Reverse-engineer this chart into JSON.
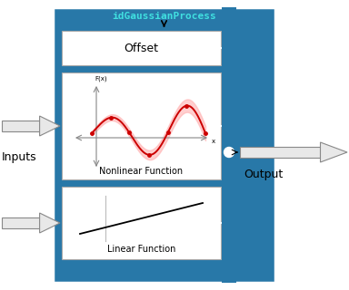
{
  "fig_w": 3.84,
  "fig_h": 3.2,
  "dpi": 100,
  "bg_color": "#2878a8",
  "box_bg": "#ffffff",
  "title_text": "idGaussianProcess",
  "title_color": "#40e0e0",
  "title_font": "monospace",
  "offset_label": "Offset",
  "nonlinear_label": "Nonlinear Function",
  "linear_label": "Linear Function",
  "inputs_label": "Inputs",
  "output_label": "Output",
  "fx_label": "F(x)",
  "x_label": "x",
  "red_line_color": "#cc0000",
  "red_fill_color": "#ffb0b0",
  "axis_color": "#888888",
  "white": "#ffffff",
  "black": "#000000",
  "arrow_face": "#e8e8e8",
  "arrow_edge": "#888888"
}
